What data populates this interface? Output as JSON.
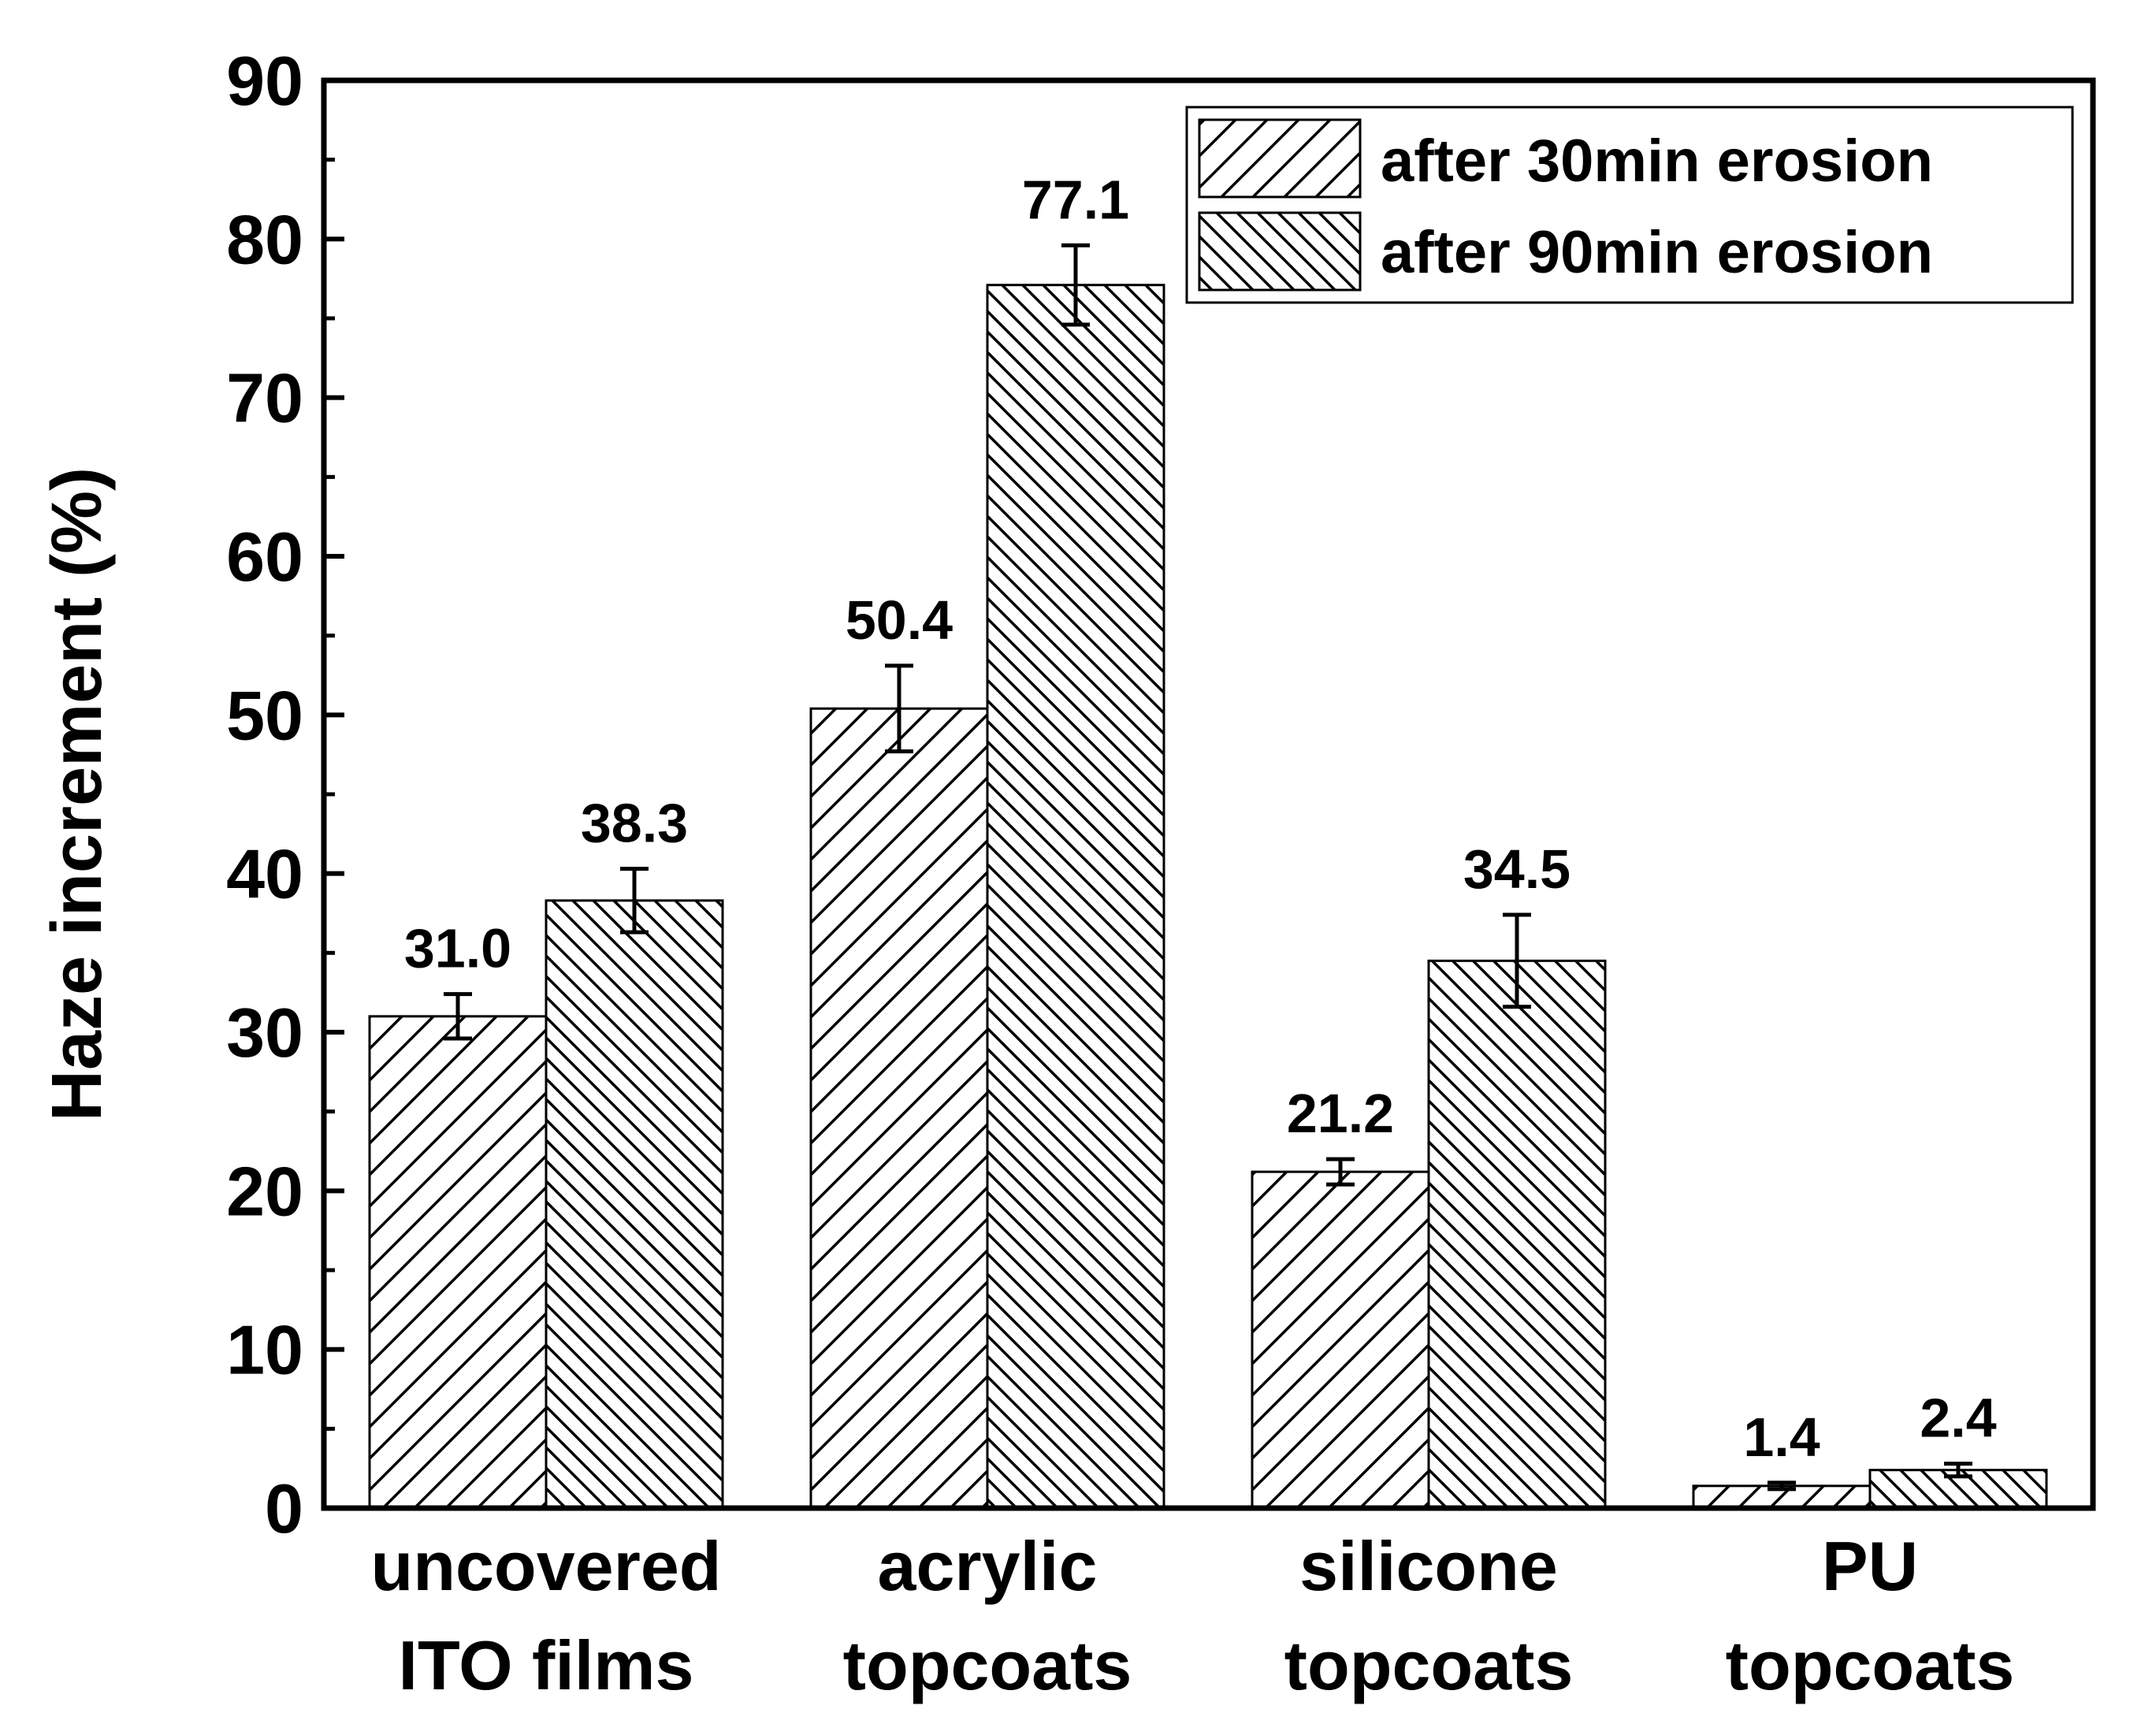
{
  "chart_data": {
    "type": "bar",
    "title": "",
    "xlabel": "",
    "ylabel": "Haze increment (%)",
    "ylim": [
      0,
      90
    ],
    "yticks": [
      0,
      10,
      20,
      30,
      40,
      50,
      60,
      70,
      80,
      90
    ],
    "categories": [
      [
        "uncovered",
        "ITO films"
      ],
      [
        "acrylic",
        "topcoats"
      ],
      [
        "silicone",
        "topcoats"
      ],
      [
        "PU",
        "topcoats"
      ]
    ],
    "series": [
      {
        "name": "after 30min erosion",
        "hatch": "forward-diagonal",
        "values": [
          31.0,
          50.4,
          21.2,
          1.4
        ],
        "value_labels": [
          "31.0",
          "50.4",
          "21.2",
          "1.4"
        ],
        "errors": [
          1.4,
          2.7,
          0.8,
          0.2
        ]
      },
      {
        "name": "after 90min erosion",
        "hatch": "backward-diagonal",
        "values": [
          38.3,
          77.1,
          34.5,
          2.4
        ],
        "value_labels": [
          "38.3",
          "77.1",
          "34.5",
          "2.4"
        ],
        "errors": [
          2.0,
          2.5,
          2.9,
          0.4
        ]
      }
    ],
    "legend": {
      "placement": "top-right"
    },
    "grid": false,
    "colors": {
      "bar_stroke": "#000000",
      "bar_fill": "#ffffff",
      "axis": "#000000"
    }
  }
}
